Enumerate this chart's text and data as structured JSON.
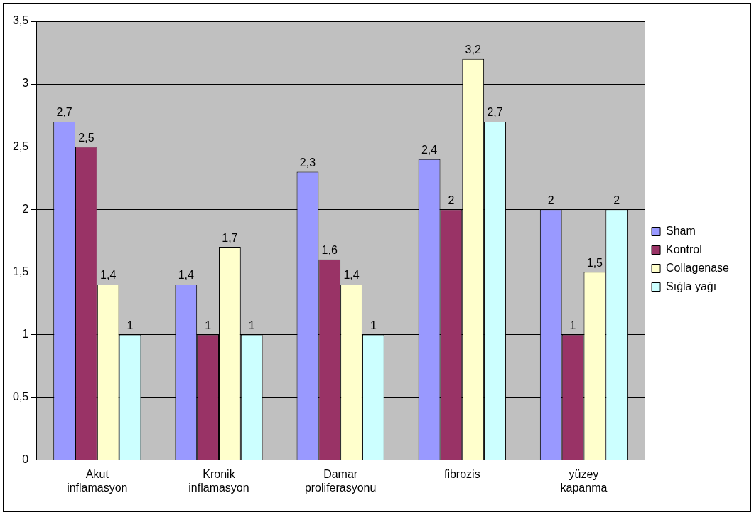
{
  "chart_data": {
    "type": "bar",
    "categories": [
      "Akut inflamasyon",
      "Kronik inflamasyon",
      "Damar proliferasyonu",
      "fibrozis",
      "yüzey kapanma"
    ],
    "series": [
      {
        "name": "Sham",
        "color": "#9999ff",
        "values": [
          2.7,
          1.4,
          2.3,
          2.4,
          2
        ],
        "value_labels": [
          "2,7",
          "1,4",
          "2,3",
          "2,4",
          "2"
        ]
      },
      {
        "name": "Kontrol",
        "color": "#993366",
        "values": [
          2.5,
          1,
          1.6,
          2,
          1
        ],
        "value_labels": [
          "2,5",
          "1",
          "1,6",
          "2",
          "1"
        ]
      },
      {
        "name": "Collagenase",
        "color": "#ffffcc",
        "values": [
          1.4,
          1.7,
          1.4,
          3.2,
          1.5
        ],
        "value_labels": [
          "1,4",
          "1,7",
          "1,4",
          "3,2",
          "1,5"
        ]
      },
      {
        "name": "Sığla yağı",
        "color": "#ccffff",
        "values": [
          1,
          1,
          1,
          2.7,
          2
        ],
        "value_labels": [
          "1",
          "1",
          "1",
          "2,7",
          "2"
        ]
      }
    ],
    "ylim": [
      0,
      3.5
    ],
    "yticks": [
      0,
      {
        "value": 0.5,
        "label": "0,5"
      },
      1,
      {
        "value": 1.5,
        "label": "1,5"
      },
      2,
      {
        "value": 2.5,
        "label": "2,5"
      },
      3,
      {
        "value": 3.5,
        "label": "3,5"
      }
    ],
    "grid": "y",
    "legend": "right"
  }
}
